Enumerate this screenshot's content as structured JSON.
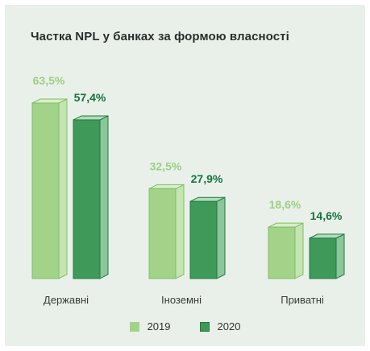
{
  "chart_data": {
    "type": "bar",
    "title": "Частка NPL у банках за формою власності",
    "categories": [
      "Державні",
      "Іноземні",
      "Приватні"
    ],
    "series": [
      {
        "name": "2019",
        "values": [
          63.5,
          32.5,
          18.6
        ],
        "labels": [
          "63,5%",
          "32,5%",
          "18,6%"
        ]
      },
      {
        "name": "2020",
        "values": [
          57.4,
          27.9,
          14.6
        ],
        "labels": [
          "57,4%",
          "27,9%",
          "14,6%"
        ]
      }
    ],
    "ylim": [
      0,
      63.5
    ],
    "grid": false,
    "legend": "bottom-center",
    "colors": {
      "series_2019": "#a3d389",
      "series_2020": "#3f9a5a",
      "label_2019": "#9ccf86",
      "label_2020": "#17723f",
      "background": "#e9f0e9"
    }
  }
}
